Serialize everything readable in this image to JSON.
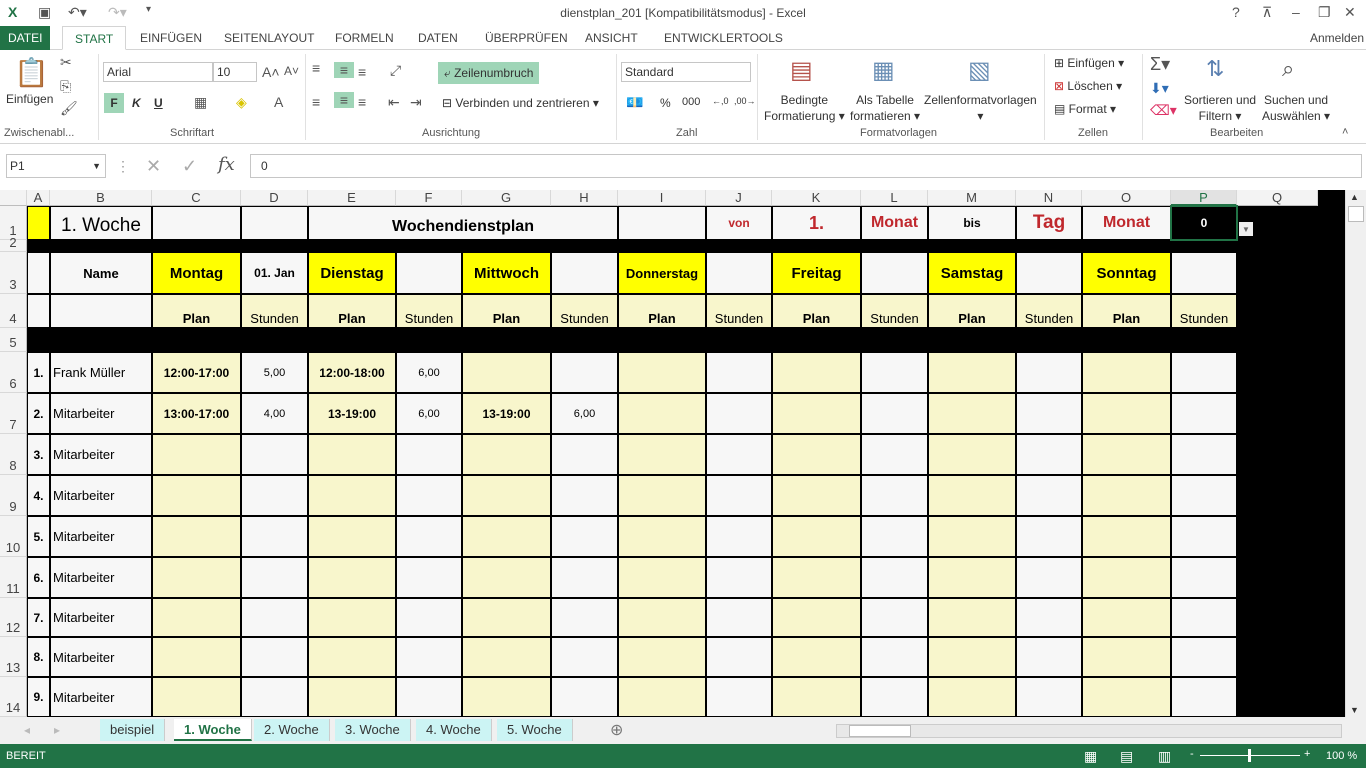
{
  "window": {
    "title": "dienstplan_201  [Kompatibilitätsmodus] - Excel",
    "help": "?",
    "signin": "Anmelden"
  },
  "ribbon_tabs": [
    "DATEI",
    "START",
    "EINFÜGEN",
    "SEITENLAYOUT",
    "FORMELN",
    "DATEN",
    "ÜBERPRÜFEN",
    "ANSICHT",
    "ENTWICKLERTOOLS"
  ],
  "ribbon": {
    "clipboard": {
      "paste": "Einfügen",
      "group": "Zwischenabl..."
    },
    "font": {
      "name": "Arial",
      "size": "10",
      "bold": "F",
      "italic": "K",
      "underline": "U",
      "group": "Schriftart"
    },
    "alignment": {
      "wrap": "Zeilenumbruch",
      "merge": "Verbinden und zentrieren",
      "group": "Ausrichtung"
    },
    "number": {
      "format": "Standard",
      "group": "Zahl"
    },
    "styles": {
      "conditional": [
        "Bedingte",
        "Formatierung"
      ],
      "table": [
        "Als Tabelle",
        "formatieren"
      ],
      "cellstyles": "Zellenformatvorlagen",
      "group": "Formatvorlagen"
    },
    "cells": {
      "insert": "Einfügen",
      "delete": "Löschen",
      "format": "Format",
      "group": "Zellen"
    },
    "editing": {
      "sort": [
        "Sortieren und",
        "Filtern"
      ],
      "find": [
        "Suchen und",
        "Auswählen"
      ],
      "group": "Bearbeiten"
    }
  },
  "formula_bar": {
    "name_box": "P1",
    "fx": "fx",
    "value": "0"
  },
  "columns": [
    "A",
    "B",
    "C",
    "D",
    "E",
    "F",
    "G",
    "H",
    "I",
    "J",
    "K",
    "L",
    "M",
    "N",
    "O",
    "P",
    "Q"
  ],
  "sheet": {
    "row1": {
      "week": "1. Woche",
      "title": "Wochendienstplan",
      "von": "von",
      "k": "1.",
      "l": "Monat",
      "bis": "bis",
      "tag": "Tag",
      "monat": "Monat",
      "p": "0"
    },
    "name_header": "Name",
    "date": "01. Jan",
    "days": [
      "Montag",
      "Dienstag",
      "Mittwoch",
      "Donnerstag",
      "Freitag",
      "Samstag",
      "Sonntag"
    ],
    "plan_label": "Plan",
    "hours_label": "Stunden",
    "rows": [
      {
        "num": "1.",
        "name": "Frank Müller",
        "cells": [
          [
            "12:00-17:00",
            "5,00"
          ],
          [
            "12:00-18:00",
            "6,00"
          ],
          [
            "",
            ""
          ],
          [
            "",
            ""
          ],
          [
            "",
            ""
          ],
          [
            "",
            ""
          ],
          [
            "",
            ""
          ]
        ]
      },
      {
        "num": "2.",
        "name": "Mitarbeiter",
        "cells": [
          [
            "13:00-17:00",
            "4,00"
          ],
          [
            "13-19:00",
            "6,00"
          ],
          [
            "13-19:00",
            "6,00"
          ],
          [
            "",
            ""
          ],
          [
            "",
            ""
          ],
          [
            "",
            ""
          ],
          [
            "",
            ""
          ]
        ]
      },
      {
        "num": "3.",
        "name": "Mitarbeiter",
        "cells": []
      },
      {
        "num": "4.",
        "name": "Mitarbeiter",
        "cells": []
      },
      {
        "num": "5.",
        "name": "Mitarbeiter",
        "cells": []
      },
      {
        "num": "6.",
        "name": "Mitarbeiter",
        "cells": []
      },
      {
        "num": "7.",
        "name": "Mitarbeiter",
        "cells": []
      },
      {
        "num": "8.",
        "name": "Mitarbeiter",
        "cells": []
      },
      {
        "num": "9.",
        "name": "Mitarbeiter",
        "cells": []
      }
    ]
  },
  "sheet_tabs": [
    "beispiel",
    "1. Woche",
    "2. Woche",
    "3. Woche",
    "4. Woche",
    "5. Woche"
  ],
  "active_sheet": "1. Woche",
  "status": {
    "mode": "BEREIT",
    "zoom": "100 %"
  },
  "colors": {
    "accent": "#217346",
    "yellow": "#ffff00",
    "cream": "#f8f6cc",
    "red": "#c0282d"
  }
}
